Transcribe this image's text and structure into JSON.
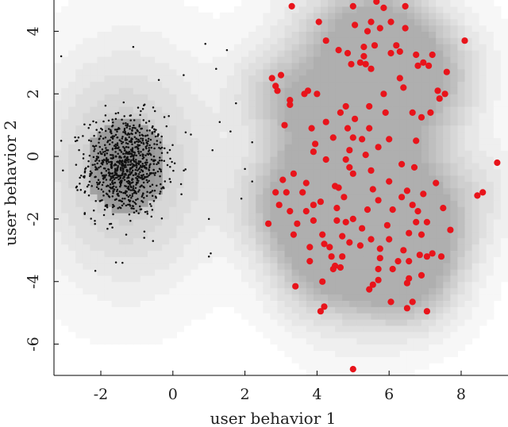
{
  "chart_data": {
    "type": "scatter",
    "title": "",
    "xlabel": "user behavior 1",
    "ylabel": "user behavior 2",
    "xlim": [
      -3.3,
      9.3
    ],
    "ylim": [
      -7.0,
      5.0
    ],
    "xticks": [
      -2,
      0,
      2,
      4,
      6,
      8
    ],
    "yticks": [
      -6,
      -4,
      -2,
      0,
      2,
      4
    ],
    "xtick_labels": [
      "-2",
      "0",
      "2",
      "4",
      "6",
      "8"
    ],
    "ytick_labels": [
      "-6",
      "-4",
      "-2",
      "0",
      "2",
      "4"
    ],
    "grid": false,
    "legend": "none",
    "background": "grayscale density heatmap",
    "colors": {
      "normal_points": "#111111",
      "anomalies": "#e8141b"
    },
    "series": [
      {
        "role": "normal",
        "marker": "small black dot",
        "color": "#111111",
        "distribution": {
          "center": [
            -1.3,
            -0.3
          ],
          "std": [
            0.55,
            0.8
          ],
          "count": 900
        }
      },
      {
        "role": "outliers",
        "marker": "red dot",
        "color": "#e8141b",
        "points": [
          [
            3.3,
            4.8
          ],
          [
            5.0,
            4.8
          ],
          [
            5.65,
            4.95
          ],
          [
            5.85,
            4.75
          ],
          [
            6.45,
            4.8
          ],
          [
            4.05,
            4.3
          ],
          [
            5.05,
            4.2
          ],
          [
            5.75,
            4.1
          ],
          [
            5.4,
            4.0
          ],
          [
            6.05,
            4.3
          ],
          [
            5.5,
            4.3
          ],
          [
            6.45,
            4.1
          ],
          [
            4.25,
            3.7
          ],
          [
            5.3,
            3.5
          ],
          [
            4.6,
            3.4
          ],
          [
            4.85,
            3.3
          ],
          [
            5.6,
            3.55
          ],
          [
            6.2,
            3.55
          ],
          [
            5.3,
            3.2
          ],
          [
            5.2,
            3.0
          ],
          [
            6.05,
            3.3
          ],
          [
            6.3,
            3.35
          ],
          [
            6.75,
            3.25
          ],
          [
            7.2,
            3.25
          ],
          [
            6.95,
            3.0
          ],
          [
            6.8,
            2.9
          ],
          [
            7.1,
            2.9
          ],
          [
            8.1,
            3.7
          ],
          [
            7.6,
            2.7
          ],
          [
            5.5,
            2.8
          ],
          [
            4.95,
            2.95
          ],
          [
            5.35,
            2.95
          ],
          [
            6.3,
            2.5
          ],
          [
            2.75,
            2.5
          ],
          [
            2.85,
            2.25
          ],
          [
            3.0,
            2.6
          ],
          [
            2.9,
            2.1
          ],
          [
            3.65,
            2.0
          ],
          [
            4.0,
            2.0
          ],
          [
            3.75,
            2.1
          ],
          [
            5.85,
            2.0
          ],
          [
            6.4,
            2.2
          ],
          [
            7.35,
            2.1
          ],
          [
            7.55,
            2.0
          ],
          [
            3.25,
            1.8
          ],
          [
            3.25,
            1.65
          ],
          [
            5.45,
            1.6
          ],
          [
            4.8,
            1.6
          ],
          [
            4.65,
            1.4
          ],
          [
            5.05,
            1.2
          ],
          [
            4.25,
            1.1
          ],
          [
            3.1,
            1.0
          ],
          [
            5.9,
            1.4
          ],
          [
            7.15,
            1.4
          ],
          [
            6.65,
            1.4
          ],
          [
            7.4,
            1.85
          ],
          [
            6.9,
            1.25
          ],
          [
            3.85,
            0.9
          ],
          [
            4.85,
            0.9
          ],
          [
            5.45,
            0.9
          ],
          [
            4.45,
            0.6
          ],
          [
            5.0,
            0.6
          ],
          [
            5.25,
            0.55
          ],
          [
            6.0,
            0.55
          ],
          [
            6.75,
            0.5
          ],
          [
            3.95,
            0.4
          ],
          [
            5.7,
            0.3
          ],
          [
            4.9,
            0.2
          ],
          [
            5.35,
            0.05
          ],
          [
            3.9,
            0.15
          ],
          [
            4.25,
            -0.1
          ],
          [
            4.8,
            -0.1
          ],
          [
            6.35,
            -0.25
          ],
          [
            4.9,
            -0.35
          ],
          [
            6.7,
            -0.35
          ],
          [
            3.35,
            -0.55
          ],
          [
            5.0,
            -0.55
          ],
          [
            5.5,
            -0.45
          ],
          [
            3.05,
            -0.75
          ],
          [
            3.7,
            -0.85
          ],
          [
            4.5,
            -0.95
          ],
          [
            4.6,
            -1.0
          ],
          [
            6.0,
            -0.8
          ],
          [
            7.3,
            -0.85
          ],
          [
            5.55,
            -1.05
          ],
          [
            6.5,
            -1.1
          ],
          [
            2.85,
            -1.15
          ],
          [
            3.15,
            -1.15
          ],
          [
            3.6,
            -1.15
          ],
          [
            4.75,
            -1.3
          ],
          [
            5.7,
            -1.4
          ],
          [
            6.35,
            -1.3
          ],
          [
            6.95,
            -1.2
          ],
          [
            9.0,
            -0.2
          ],
          [
            8.6,
            -1.15
          ],
          [
            8.45,
            -1.25
          ],
          [
            2.95,
            -1.55
          ],
          [
            3.9,
            -1.55
          ],
          [
            4.1,
            -1.45
          ],
          [
            3.25,
            -1.75
          ],
          [
            3.7,
            -1.75
          ],
          [
            4.55,
            -1.65
          ],
          [
            5.4,
            -1.7
          ],
          [
            6.1,
            -1.7
          ],
          [
            6.65,
            -1.55
          ],
          [
            6.8,
            -1.75
          ],
          [
            7.5,
            -1.65
          ],
          [
            2.65,
            -2.15
          ],
          [
            3.45,
            -2.15
          ],
          [
            3.9,
            -2.05
          ],
          [
            4.55,
            -2.05
          ],
          [
            4.8,
            -2.1
          ],
          [
            5.0,
            -2.0
          ],
          [
            5.25,
            -2.3
          ],
          [
            5.95,
            -2.2
          ],
          [
            6.75,
            -2.1
          ],
          [
            7.05,
            -2.1
          ],
          [
            7.7,
            -2.35
          ],
          [
            3.35,
            -2.5
          ],
          [
            4.15,
            -2.5
          ],
          [
            4.7,
            -2.55
          ],
          [
            4.9,
            -2.75
          ],
          [
            5.5,
            -2.65
          ],
          [
            5.75,
            -2.95
          ],
          [
            6.0,
            -2.65
          ],
          [
            6.55,
            -2.45
          ],
          [
            6.9,
            -2.5
          ],
          [
            3.8,
            -2.9
          ],
          [
            4.2,
            -2.8
          ],
          [
            4.35,
            -2.9
          ],
          [
            5.2,
            -2.85
          ],
          [
            6.4,
            -3.0
          ],
          [
            6.55,
            -3.35
          ],
          [
            6.85,
            -3.15
          ],
          [
            7.05,
            -3.2
          ],
          [
            7.2,
            -3.1
          ],
          [
            4.4,
            -3.2
          ],
          [
            4.7,
            -3.2
          ],
          [
            5.75,
            -3.25
          ],
          [
            6.25,
            -3.35
          ],
          [
            7.45,
            -3.2
          ],
          [
            3.8,
            -3.35
          ],
          [
            4.5,
            -3.5
          ],
          [
            4.65,
            -3.55
          ],
          [
            4.45,
            -3.6
          ],
          [
            5.7,
            -3.6
          ],
          [
            6.1,
            -3.6
          ],
          [
            6.55,
            -3.9
          ],
          [
            6.9,
            -3.8
          ],
          [
            5.7,
            -3.95
          ],
          [
            4.15,
            -4.0
          ],
          [
            6.5,
            -4.05
          ],
          [
            5.55,
            -4.1
          ],
          [
            5.45,
            -4.25
          ],
          [
            3.4,
            -4.15
          ],
          [
            6.05,
            -4.65
          ],
          [
            6.65,
            -4.65
          ],
          [
            4.2,
            -4.8
          ],
          [
            6.5,
            -4.85
          ],
          [
            7.05,
            -4.95
          ],
          [
            4.1,
            -4.95
          ],
          [
            5.0,
            -6.8
          ]
        ]
      }
    ]
  }
}
